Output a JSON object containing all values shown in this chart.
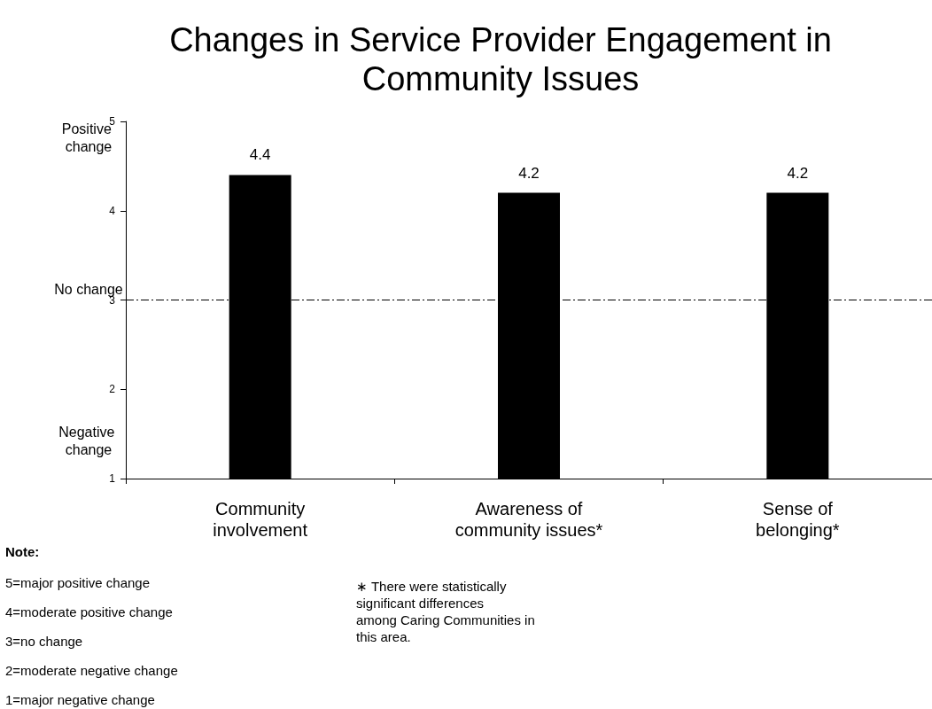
{
  "chart_data": {
    "type": "bar",
    "title": "Changes in Service Provider Engagement in\nCommunity Issues",
    "categories": [
      "Community\ninvolvement",
      "Awareness of\ncommunity issues*",
      "Sense of\nbelonging*"
    ],
    "values": [
      4.4,
      4.2,
      4.2
    ],
    "color": "#000000",
    "data_labels": true,
    "ylim": [
      1,
      5
    ],
    "yticks": [
      1,
      2,
      3,
      4,
      5
    ],
    "grid": false,
    "ref_lines": [
      {
        "axis": "y",
        "value": 3,
        "label": "No change",
        "color": "#000000",
        "line_style": "dashdot"
      }
    ],
    "annotations": [
      "Positive change",
      "Negative change",
      "Note:",
      "5=major positive change",
      "4=moderate positive change",
      "3=no change",
      "2=moderate negative change",
      "1=major negative change",
      "∗ There were statistically significant differences among Caring Communities in this area."
    ]
  }
}
